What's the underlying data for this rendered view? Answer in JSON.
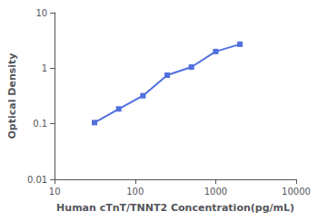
{
  "chart_data": {
    "type": "line",
    "x": [
      31.25,
      62.5,
      125,
      250,
      500,
      1000,
      2000
    ],
    "values": [
      0.105,
      0.185,
      0.32,
      0.75,
      1.05,
      2.0,
      2.7
    ],
    "xlabel": "Human cTnT/TNNT2 Concentration(pg/mL)",
    "ylabel": "Optical Density",
    "xlim": [
      10,
      10000
    ],
    "ylim": [
      0.01,
      10
    ],
    "xticks": [
      10,
      100,
      1000,
      10000
    ],
    "yticks": [
      0.01,
      0.1,
      1,
      10
    ],
    "log": true,
    "grid": false,
    "marker": "square"
  }
}
